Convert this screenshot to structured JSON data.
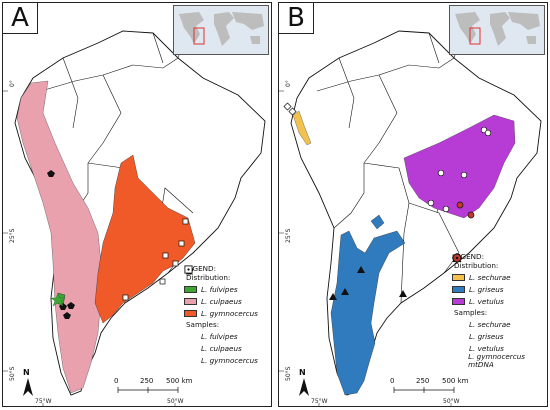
{
  "panel_a": {
    "label": "A",
    "legend": {
      "title": "LEGEND:",
      "distribution_title": "Distribution:",
      "items": [
        {
          "name": "L. fulvipes",
          "color": "#3fa535"
        },
        {
          "name": "L. culpaeus",
          "color": "#e8a1ad"
        },
        {
          "name": "L. gymnocercus",
          "color": "#f05a28"
        }
      ],
      "samples_title": "Samples:",
      "samples": [
        {
          "name": "L. fulvipes",
          "symbol": "green-star-icon"
        },
        {
          "name": "L. culpaeus",
          "symbol": "black-pentagon-icon"
        },
        {
          "name": "L. gymnocercus",
          "symbol": "dotted-square-icon"
        }
      ]
    },
    "scale": {
      "zero": "0",
      "mid": "250",
      "end": "500 km"
    },
    "north": "N",
    "lat_ticks": [
      "0°",
      "25°S",
      "50°S"
    ],
    "lon_ticks": [
      "75°W",
      "50°W"
    ]
  },
  "panel_b": {
    "label": "B",
    "legend": {
      "title": "LEGEND:",
      "distribution_title": "Distribution:",
      "items": [
        {
          "name": "L. sechurae",
          "color": "#f2c14e"
        },
        {
          "name": "L. griseus",
          "color": "#2f7bbd"
        },
        {
          "name": "L. vetulus",
          "color": "#b73cd6"
        }
      ],
      "samples_title": "Samples:",
      "samples": [
        {
          "name": "L. sechurae",
          "symbol": "diamond-dot-icon"
        },
        {
          "name": "L. griseus",
          "symbol": "black-triangle-icon"
        },
        {
          "name": "L. vetulus",
          "symbol": "dotted-circle-icon"
        },
        {
          "name": "L. gymnocercus mtDNA",
          "symbol": "red-circle-icon"
        }
      ]
    },
    "scale": {
      "zero": "0",
      "mid": "250",
      "end": "500 km"
    },
    "north": "N",
    "lat_ticks": [
      "0°",
      "25°S",
      "50°S"
    ],
    "lon_ticks": [
      "75°W",
      "50°W"
    ]
  }
}
